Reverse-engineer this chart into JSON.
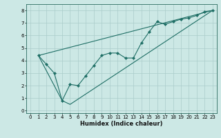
{
  "xlabel": "Humidex (Indice chaleur)",
  "background_color": "#cce8e5",
  "grid_color": "#aaccca",
  "line_color": "#1e6e65",
  "xlim": [
    -0.5,
    23.5
  ],
  "ylim": [
    -0.2,
    8.5
  ],
  "xticks": [
    0,
    1,
    2,
    3,
    4,
    5,
    6,
    7,
    8,
    9,
    10,
    11,
    12,
    13,
    14,
    15,
    16,
    17,
    18,
    19,
    20,
    21,
    22,
    23
  ],
  "yticks": [
    0,
    1,
    2,
    3,
    4,
    5,
    6,
    7,
    8
  ],
  "line1_x": [
    1,
    2,
    3,
    4,
    5,
    6,
    7,
    8,
    9,
    10,
    11,
    12,
    13,
    14,
    15,
    16,
    17,
    18,
    19,
    20,
    21,
    22,
    23
  ],
  "line1_y": [
    4.4,
    3.7,
    3.0,
    0.8,
    2.1,
    2.0,
    2.8,
    3.6,
    4.4,
    4.6,
    4.6,
    4.2,
    4.2,
    5.4,
    6.3,
    7.1,
    6.9,
    7.1,
    7.3,
    7.4,
    7.6,
    7.9,
    8.0
  ],
  "line2_x": [
    1,
    23
  ],
  "line2_y": [
    4.4,
    8.0
  ],
  "line3_x": [
    1,
    4,
    5,
    23
  ],
  "line3_y": [
    4.4,
    0.8,
    0.5,
    8.0
  ]
}
